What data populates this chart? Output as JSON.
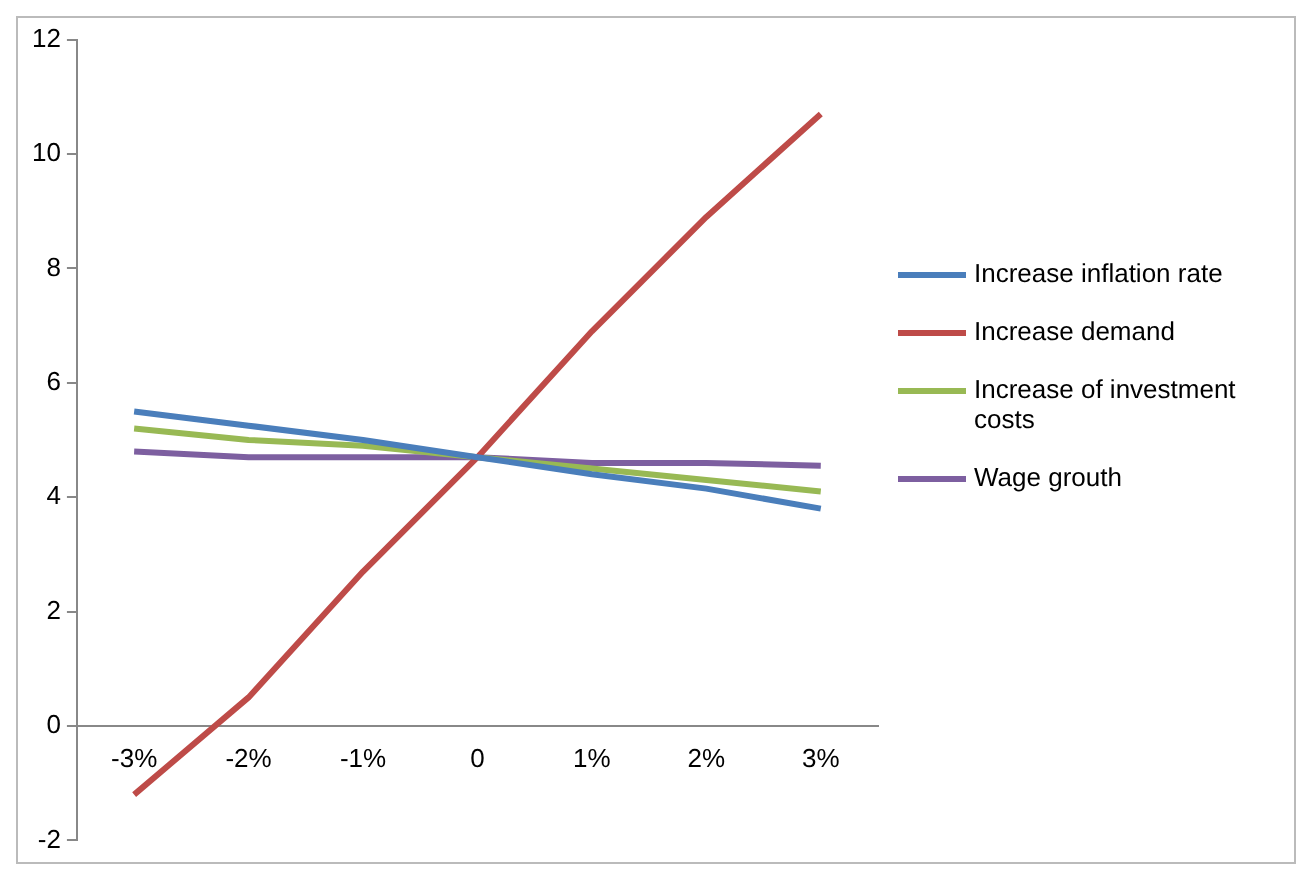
{
  "chart_data": {
    "type": "line",
    "categories": [
      "-3%",
      "-2%",
      "-1%",
      "0",
      "1%",
      "2%",
      "3%"
    ],
    "series": [
      {
        "name": "Increase inflation rate",
        "color": "#4a7ebb",
        "values": [
          5.5,
          5.25,
          5.0,
          4.7,
          4.4,
          4.15,
          3.8
        ]
      },
      {
        "name": "Increase demand",
        "color": "#be4b48",
        "values": [
          -1.2,
          0.5,
          2.7,
          4.7,
          6.9,
          8.9,
          10.7
        ]
      },
      {
        "name": "Increase of investment costs",
        "color": "#98b954",
        "values": [
          5.2,
          5.0,
          4.9,
          4.7,
          4.5,
          4.3,
          4.1
        ]
      },
      {
        "name": "Wage grouth",
        "color": "#7d5fa0",
        "values": [
          4.8,
          4.7,
          4.7,
          4.7,
          4.6,
          4.6,
          4.55
        ]
      }
    ],
    "ylim": [
      -2,
      12
    ],
    "yticks": [
      -2,
      0,
      2,
      4,
      6,
      8,
      10,
      12
    ],
    "grid": false,
    "legend": "right",
    "marker": "none",
    "line_style": "solid"
  }
}
